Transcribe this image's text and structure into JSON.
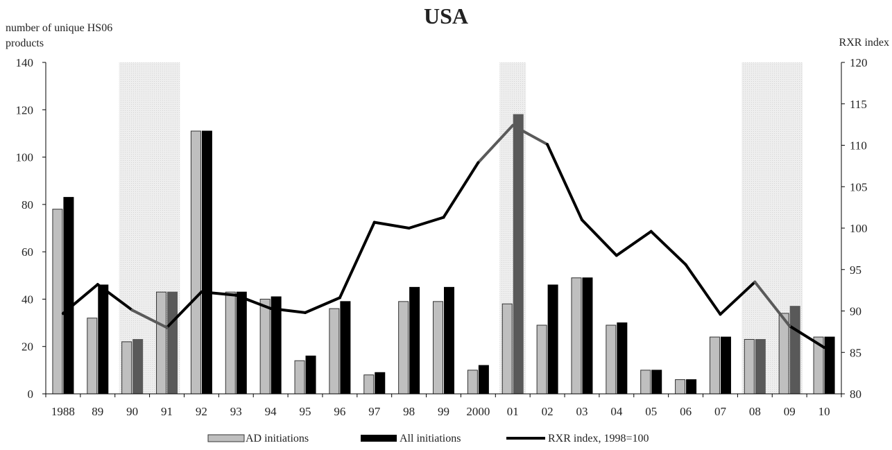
{
  "chart_data": {
    "type": "bar",
    "title": "USA",
    "ylabel_left": [
      "number of unique  HS06",
      "products"
    ],
    "ylabel_right": "RXR index",
    "xlabel": "",
    "categories": [
      "1988",
      "89",
      "90",
      "91",
      "92",
      "93",
      "94",
      "95",
      "96",
      "97",
      "98",
      "99",
      "2000",
      "01",
      "02",
      "03",
      "04",
      "05",
      "06",
      "07",
      "08",
      "09",
      "10"
    ],
    "ylim_left": [
      0,
      140
    ],
    "yticks_left": [
      "0",
      "20",
      "40",
      "60",
      "80",
      "100",
      "120",
      "140"
    ],
    "ylim_right": [
      80,
      120
    ],
    "yticks_right": [
      "80",
      "85",
      "90",
      "95",
      "100",
      "105",
      "110",
      "115",
      "120"
    ],
    "grid": false,
    "legend_position": "bottom",
    "series": [
      {
        "name": "AD initiations",
        "type": "bar",
        "axis": "left",
        "color": "#bfbfbf",
        "values": [
          78,
          32,
          22,
          43,
          111,
          43,
          40,
          14,
          36,
          8,
          39,
          39,
          10,
          38,
          29,
          49,
          29,
          10,
          6,
          24,
          23,
          34,
          24
        ]
      },
      {
        "name": "All initiations",
        "type": "bar",
        "axis": "left",
        "color": "#000000",
        "values": [
          83,
          46,
          23,
          43,
          111,
          43,
          41,
          16,
          39,
          9,
          45,
          45,
          12,
          118,
          46,
          49,
          30,
          10,
          6,
          24,
          23,
          37,
          24
        ]
      },
      {
        "name": "RXR index, 1998=100",
        "type": "line",
        "axis": "right",
        "color": "#000000",
        "values": [
          89.7,
          93.2,
          90.1,
          88.0,
          92.3,
          91.9,
          90.3,
          89.8,
          91.6,
          100.7,
          100.0,
          101.3,
          107.9,
          112.4,
          110.1,
          101.0,
          96.7,
          99.6,
          95.6,
          89.6,
          93.5,
          88.2,
          85.6
        ]
      }
    ],
    "recession_periods": [
      {
        "from": "90",
        "to": "91"
      },
      {
        "from": "01",
        "to": "01"
      },
      {
        "from": "08",
        "to": "09"
      }
    ],
    "shade_color": "#e6e6e6"
  }
}
